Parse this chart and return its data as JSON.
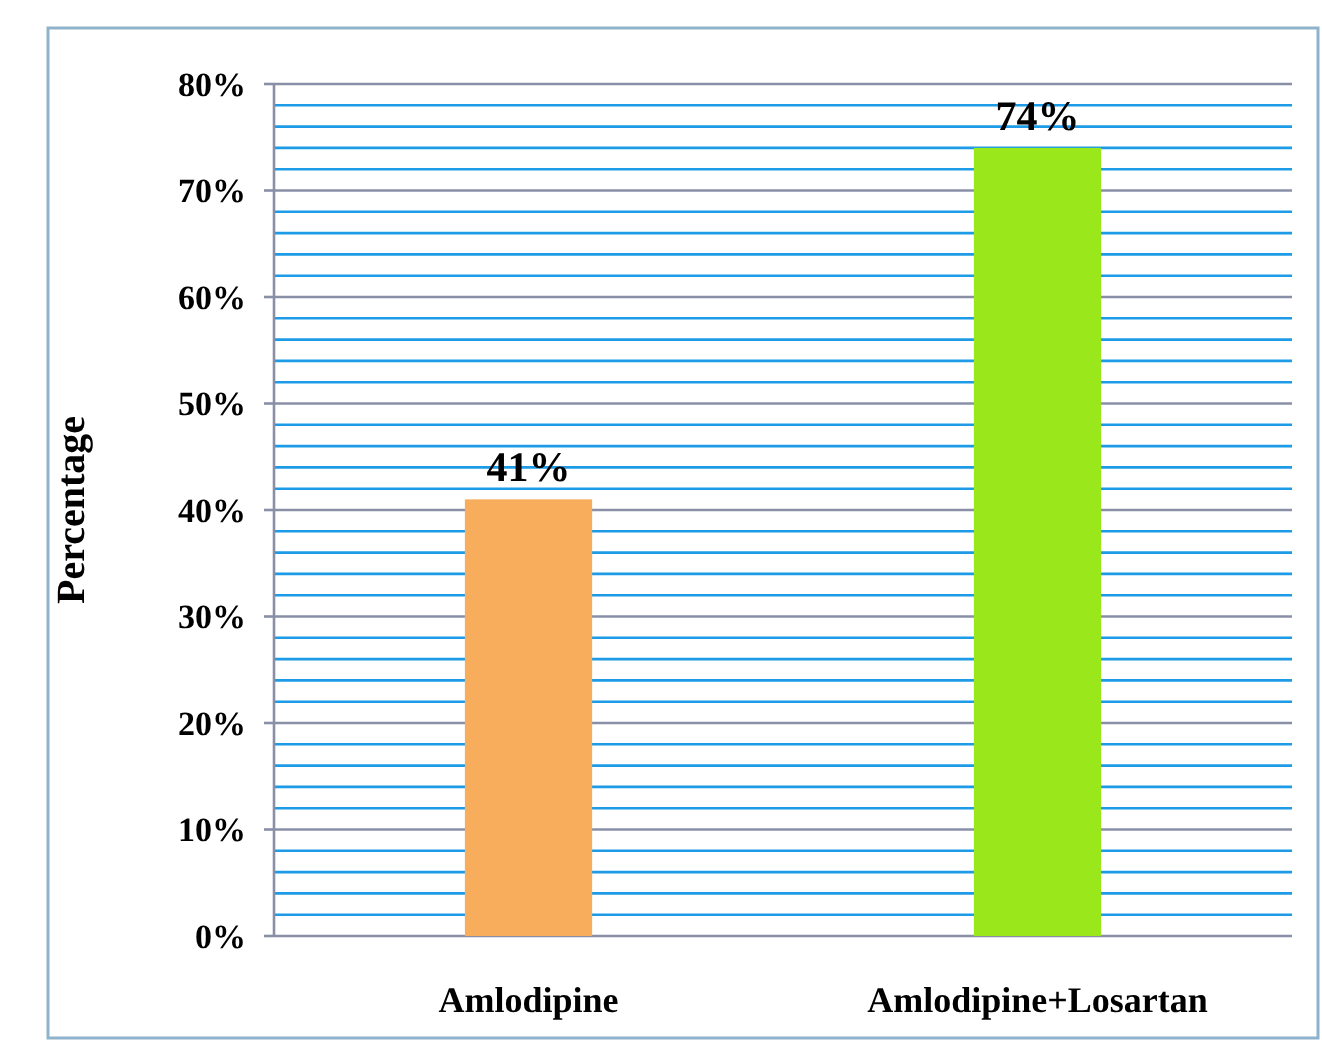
{
  "chart_data": {
    "type": "bar",
    "ylabel": "Percentage",
    "categories": [
      "Amlodipine",
      "Amlodipine+Losartan"
    ],
    "values": [
      41,
      74
    ],
    "colors": [
      "#f7ad5c",
      "#9ae81c"
    ],
    "value_labels": [
      "41%",
      "74%"
    ],
    "ylim": [
      0,
      80
    ],
    "yticks": [
      {
        "value": 0,
        "label": "0%"
      },
      {
        "value": 2,
        "label": null
      },
      {
        "value": 4,
        "label": null
      },
      {
        "value": 6,
        "label": null
      },
      {
        "value": 8,
        "label": null
      },
      {
        "value": 10,
        "label": "10%"
      },
      {
        "value": 12,
        "label": null
      },
      {
        "value": 14,
        "label": null
      },
      {
        "value": 16,
        "label": null
      },
      {
        "value": 18,
        "label": null
      },
      {
        "value": 20,
        "label": "20%"
      },
      {
        "value": 22,
        "label": null
      },
      {
        "value": 24,
        "label": null
      },
      {
        "value": 26,
        "label": null
      },
      {
        "value": 28,
        "label": null
      },
      {
        "value": 30,
        "label": "30%"
      },
      {
        "value": 32,
        "label": null
      },
      {
        "value": 34,
        "label": null
      },
      {
        "value": 36,
        "label": null
      },
      {
        "value": 38,
        "label": null
      },
      {
        "value": 40,
        "label": "40%"
      },
      {
        "value": 42,
        "label": null
      },
      {
        "value": 44,
        "label": null
      },
      {
        "value": 46,
        "label": null
      },
      {
        "value": 48,
        "label": null
      },
      {
        "value": 50,
        "label": "50%"
      },
      {
        "value": 52,
        "label": null
      },
      {
        "value": 54,
        "label": null
      },
      {
        "value": 56,
        "label": null
      },
      {
        "value": 58,
        "label": null
      },
      {
        "value": 60,
        "label": "60%"
      },
      {
        "value": 62,
        "label": null
      },
      {
        "value": 64,
        "label": null
      },
      {
        "value": 66,
        "label": null
      },
      {
        "value": 68,
        "label": null
      },
      {
        "value": 70,
        "label": "70%"
      },
      {
        "value": 72,
        "label": null
      },
      {
        "value": 74,
        "label": null
      },
      {
        "value": 76,
        "label": null
      },
      {
        "value": 78,
        "label": null
      },
      {
        "value": 80,
        "label": "80%"
      }
    ],
    "grid": "y"
  }
}
